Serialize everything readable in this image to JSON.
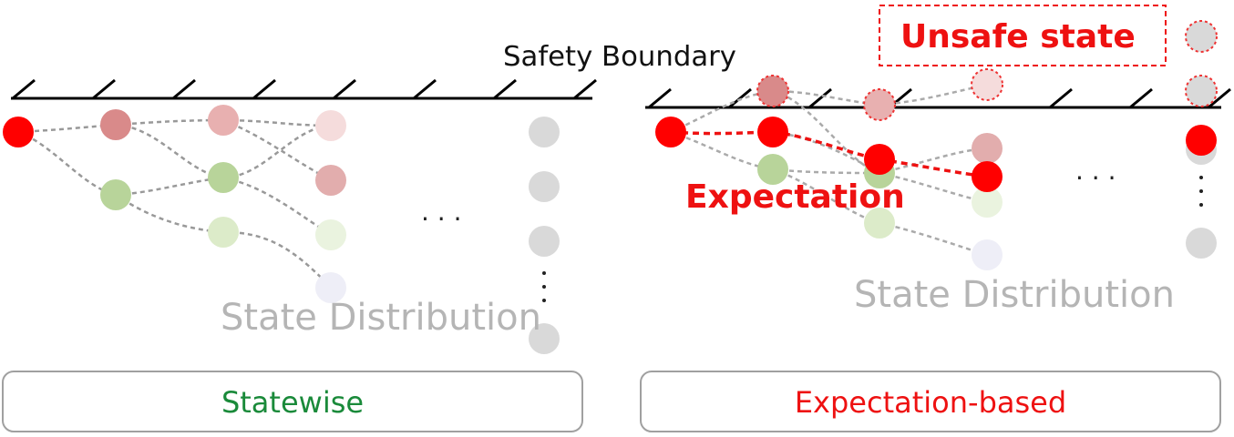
{
  "labels": {
    "safety_boundary": "Safety Boundary",
    "unsafe_state": "Unsafe state",
    "expectation": "Expectation",
    "state_distribution_left": "State Distribution",
    "state_distribution_right": "State Distribution",
    "ellipsis_left": "· · ·",
    "ellipsis_right": "· · ·"
  },
  "panels": {
    "left": {
      "caption": "Statewise",
      "caption_color": "#1a8a3a"
    },
    "right": {
      "caption": "Expectation-based",
      "caption_color": "#ee1111"
    }
  },
  "colors": {
    "red": "#ff0000",
    "dark_pink": "#d98a8a",
    "pink": "#e8b0b0",
    "light_pink": "#f5dcdc",
    "green": "#b8d49a",
    "light_green": "#dcebc9",
    "pale_green": "#eaf3df",
    "lavender": "#eeeef7",
    "gray": "#d9d9d9",
    "dashed_edge": "#999999",
    "boundary": "#000000"
  }
}
